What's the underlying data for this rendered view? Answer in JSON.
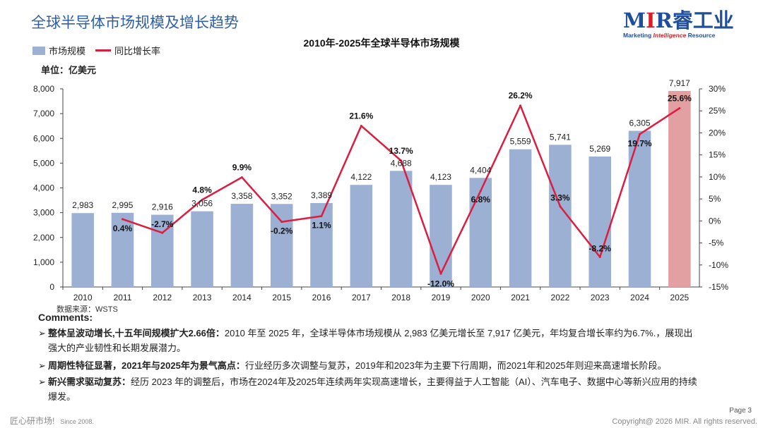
{
  "page": {
    "title": "全球半导体市场规模及增长趋势",
    "source": "数据来源：WSTS",
    "footer_left": "匠心研市场!",
    "footer_since": "Since 2008.",
    "page_number": "Page 3",
    "copyright": "Copyright@ 2026 MIR. All rights reserved."
  },
  "logo": {
    "main_mir_m": "M",
    "main_mir_i": "I",
    "main_mir_r": "R",
    "main_cn": "睿工业",
    "sub_a": "Marketing ",
    "sub_b": "Intelligence",
    "sub_c": " Resource"
  },
  "colors": {
    "bar": "#9bb0d3",
    "bar_highlight": "#e3a0a3",
    "line": "#dc1d3f",
    "title": "#2f5fa6"
  },
  "chart_data": {
    "type": "bar+line",
    "title": "2010年-2025年全球半导体市场规模",
    "unit_label": "单位：亿美元",
    "legend": {
      "bar": "市场规模",
      "line": "同比增长率"
    },
    "categories": [
      "2010",
      "2011",
      "2012",
      "2013",
      "2014",
      "2015",
      "2016",
      "2017",
      "2018",
      "2019",
      "2020",
      "2021",
      "2022",
      "2023",
      "2024",
      "2025"
    ],
    "bar_values": [
      2983,
      2995,
      2916,
      3056,
      3358,
      3352,
      3389,
      4122,
      4688,
      4123,
      4404,
      5559,
      5741,
      5269,
      6305,
      7917
    ],
    "bar_labels": [
      "2,983",
      "2,995",
      "2,916",
      "3,056",
      "3,358",
      "3,352",
      "3,389",
      "4,122",
      "4,688",
      "4,123",
      "4,404",
      "5,559",
      "5,741",
      "5,269",
      "6,305",
      "7,917"
    ],
    "highlight_index": 15,
    "growth_values": [
      null,
      0.4,
      -2.7,
      4.8,
      9.9,
      -0.2,
      1.1,
      21.6,
      13.7,
      -12.0,
      6.8,
      26.2,
      3.3,
      -8.2,
      19.7,
      25.6
    ],
    "growth_labels": [
      "",
      "0.4%",
      "-2.7%",
      "4.8%",
      "9.9%",
      "-0.2%",
      "1.1%",
      "21.6%",
      "13.7%",
      "-12.0%",
      "6.8%",
      "26.2%",
      "3.3%",
      "-8.2%",
      "19.7%",
      "25.6%"
    ],
    "y_left": {
      "min": 0,
      "max": 8000,
      "ticks": [
        "0",
        "1,000",
        "2,000",
        "3,000",
        "4,000",
        "5,000",
        "6,000",
        "7,000",
        "8,000"
      ]
    },
    "y_right": {
      "min": -15,
      "max": 30,
      "ticks": [
        "-15%",
        "-10%",
        "-5%",
        "0%",
        "5%",
        "10%",
        "15%",
        "20%",
        "25%",
        "30%"
      ]
    }
  },
  "comments": {
    "heading": "Comments:",
    "items": [
      {
        "bold": "整体呈波动增长,十五年间规模扩大2.66倍：",
        "text": "2010 年至 2025 年，全球半导体市场规模从 2,983 亿美元增长至 7,917 亿美元，年均复合增长率约为6.7%.，展现出",
        "text2": "强大的产业韧性和长期发展潜力。"
      },
      {
        "bold": "周期性特征显著，2021年与2025年为景气高点：",
        "text": "行业经历多次调整与复苏，2019年和2023年为主要下行周期，而2021年和2025年则迎来高速增长阶段。"
      },
      {
        "bold": "新兴需求驱动复苏：",
        "text": "经历 2023 年的调整后，市场在2024年及2025年连续两年实现高速增长，主要得益于人工智能（AI）、汽车电子、数据中心等新兴应用的持续",
        "text2": "爆发。"
      }
    ]
  }
}
